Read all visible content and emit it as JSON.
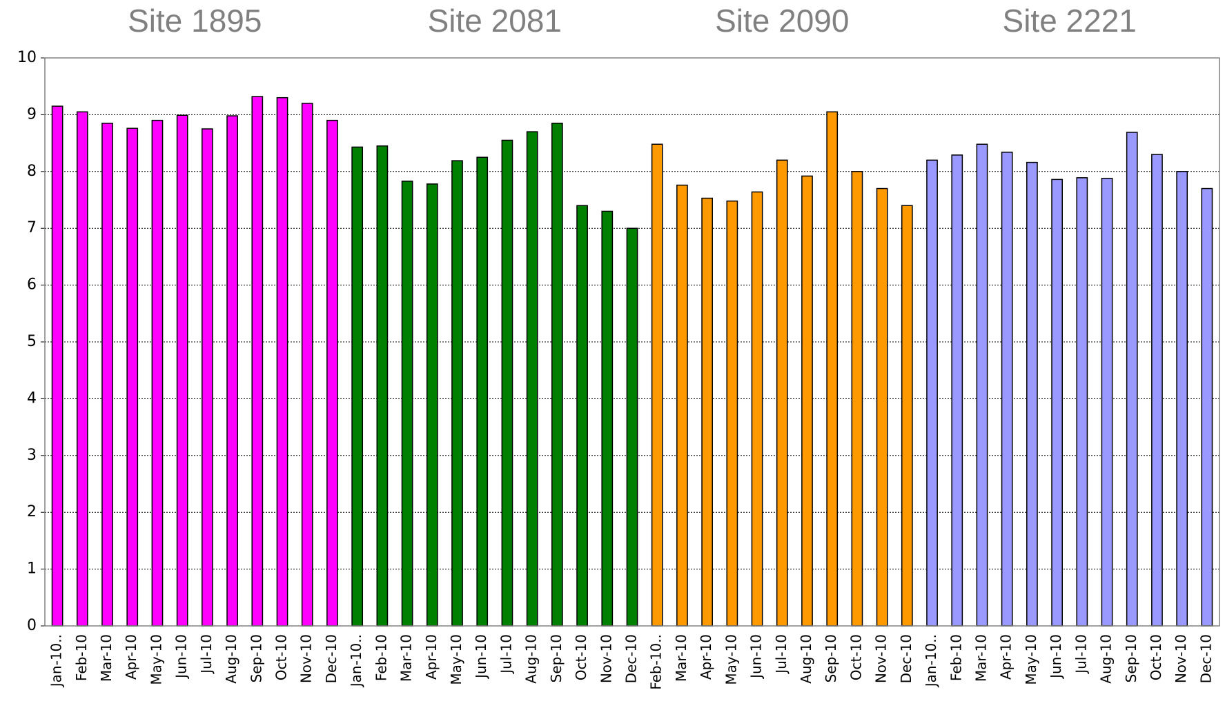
{
  "chart_data": {
    "type": "bar",
    "ylim": [
      0,
      10
    ],
    "yticks": [
      0,
      1,
      2,
      3,
      4,
      5,
      6,
      7,
      8,
      9,
      10
    ],
    "grid": true,
    "groups": [
      {
        "name": "Site 1895",
        "color": "#ff00ff",
        "categories": [
          "Jan-10..",
          "Feb-10",
          "Mar-10",
          "Apr-10",
          "May-10",
          "Jun-10",
          "Jul-10",
          "Aug-10",
          "Sep-10",
          "Oct-10",
          "Nov-10",
          "Dec-10"
        ],
        "values": [
          9.15,
          9.05,
          8.85,
          8.76,
          8.9,
          8.99,
          8.75,
          8.98,
          9.32,
          9.3,
          9.2,
          8.9
        ]
      },
      {
        "name": "Site 2081",
        "color": "#008000",
        "categories": [
          "Jan-10..",
          "Feb-10",
          "Mar-10",
          "Apr-10",
          "May-10",
          "Jun-10",
          "Jul-10",
          "Aug-10",
          "Sep-10",
          "Oct-10",
          "Nov-10",
          "Dec-10"
        ],
        "values": [
          8.43,
          8.45,
          7.83,
          7.78,
          8.19,
          8.25,
          8.55,
          8.7,
          8.85,
          7.4,
          7.3,
          7.0
        ]
      },
      {
        "name": "Site 2090",
        "color": "#ff9900",
        "categories": [
          "Feb-10..",
          "Mar-10",
          "Apr-10",
          "May-10",
          "Jun-10",
          "Jul-10",
          "Aug-10",
          "Sep-10",
          "Oct-10",
          "Nov-10",
          "Dec-10"
        ],
        "values": [
          8.48,
          7.76,
          7.53,
          7.48,
          7.64,
          8.2,
          7.92,
          9.05,
          8.0,
          7.7,
          7.4
        ]
      },
      {
        "name": "Site 2221",
        "color": "#9999ff",
        "categories": [
          "Jan-10..",
          "Feb-10",
          "Mar-10",
          "Apr-10",
          "May-10",
          "Jun-10",
          "Jul-10",
          "Aug-10",
          "Sep-10",
          "Oct-10",
          "Nov-10",
          "Dec-10"
        ],
        "values": [
          8.2,
          8.29,
          8.48,
          8.34,
          8.16,
          7.86,
          7.89,
          7.88,
          8.69,
          8.3,
          8.0,
          7.7
        ]
      }
    ]
  }
}
